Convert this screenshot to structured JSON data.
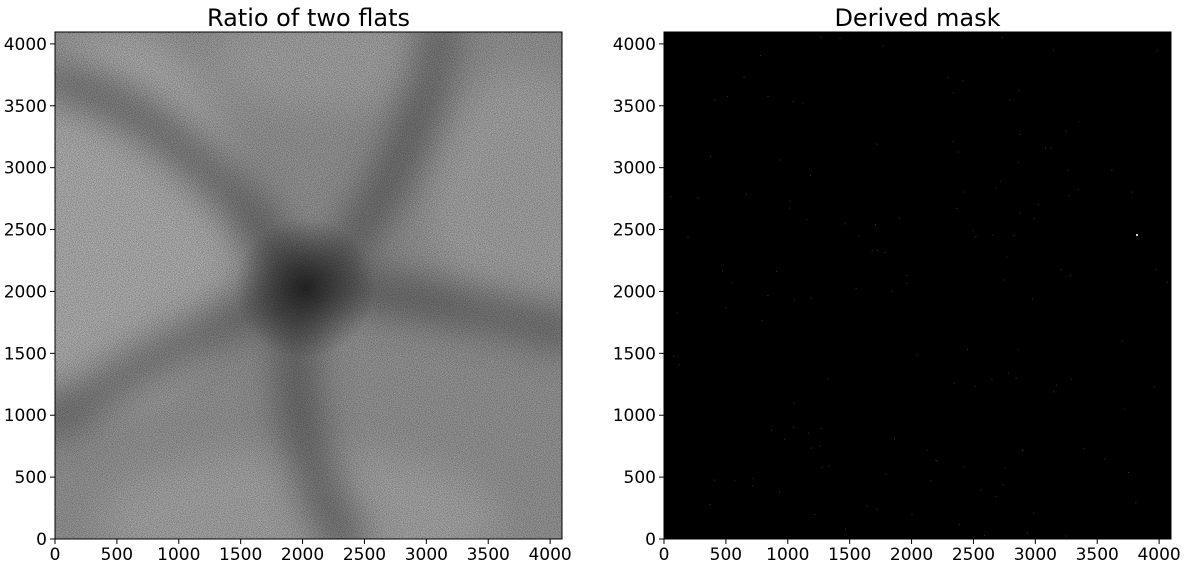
{
  "chart_data": [
    {
      "type": "heatmap",
      "title": "Ratio of two flats",
      "xlabel": "",
      "ylabel": "",
      "xlim": [
        0,
        4096
      ],
      "ylim": [
        0,
        4096
      ],
      "xticks": [
        0,
        500,
        1000,
        1500,
        2000,
        2500,
        3000,
        3500,
        4000
      ],
      "yticks": [
        0,
        500,
        1000,
        1500,
        2000,
        2500,
        3000,
        3500,
        4000
      ],
      "colormap": "gray",
      "grid": false
    },
    {
      "type": "heatmap",
      "title": "Derived mask",
      "xlabel": "",
      "ylabel": "",
      "xlim": [
        0,
        4096
      ],
      "ylim": [
        0,
        4096
      ],
      "xticks": [
        0,
        500,
        1000,
        1500,
        2000,
        2500,
        3000,
        3500,
        4000
      ],
      "yticks": [
        0,
        500,
        1000,
        1500,
        2000,
        2500,
        3000,
        3500,
        4000
      ],
      "colormap": "gray",
      "grid": false
    }
  ]
}
